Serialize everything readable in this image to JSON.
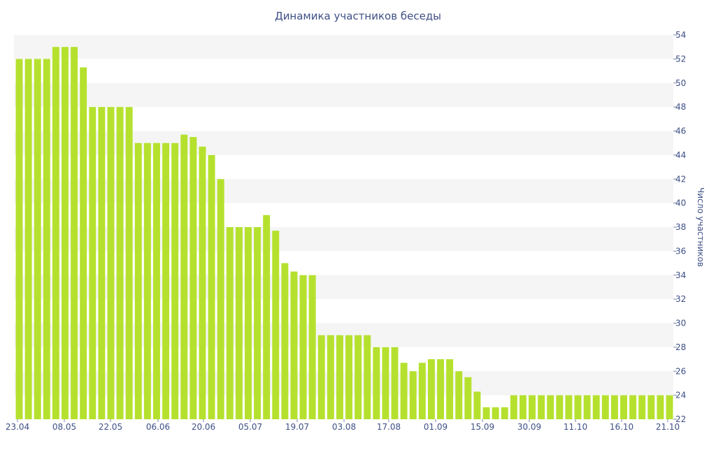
{
  "chart_data": {
    "type": "bar",
    "title": "Динамика участников беседы",
    "xlabel": "",
    "ylabel": "Число участников",
    "ylim": [
      22,
      54
    ],
    "y_ticks": [
      22,
      24,
      26,
      28,
      30,
      32,
      34,
      36,
      38,
      40,
      42,
      44,
      46,
      48,
      50,
      52,
      54
    ],
    "x_tick_labels": [
      "23.04",
      "08.05",
      "22.05",
      "06.06",
      "20.06",
      "05.07",
      "19.07",
      "03.08",
      "17.08",
      "01.09",
      "15.09",
      "30.09",
      "11.10",
      "16.10",
      "21.10"
    ],
    "grid": "horizontal bands",
    "y_axis_position": "right",
    "bar_color": "#b5e12e",
    "band_color": "#f5f5f5",
    "text_color": "#3e4f86",
    "values": [
      52,
      52,
      52,
      52,
      53,
      53,
      53,
      51.3,
      48,
      48,
      48,
      48,
      48,
      45,
      45,
      45,
      45,
      45,
      45.7,
      45.5,
      44.7,
      44,
      42,
      38,
      38,
      38,
      38,
      39,
      37.7,
      35,
      34.3,
      34,
      34,
      29,
      29,
      29,
      29,
      29,
      29,
      28,
      28,
      28,
      26.7,
      26,
      26.7,
      27,
      27,
      27,
      26,
      25.5,
      24.3,
      23,
      23,
      23,
      24,
      24,
      24,
      24,
      24,
      24,
      24,
      24,
      24,
      24,
      24,
      24,
      24,
      24,
      24,
      24,
      24,
      24
    ]
  }
}
